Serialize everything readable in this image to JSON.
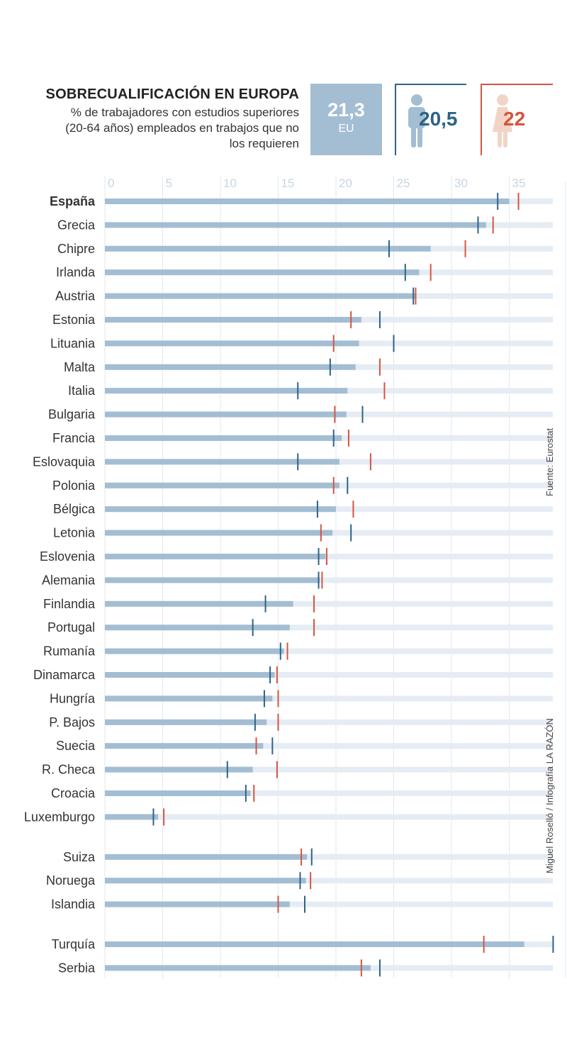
{
  "header": {
    "title": "SOBRECUALIFICACIÓN EN EUROPA",
    "subtitle": "% de trabajadores con estudios superiores (20-64 años) empleados en trabajos que no los requieren",
    "eu_value": "21,3",
    "eu_label": "EU",
    "men_value": "20,5",
    "women_value": "22",
    "men_icon": "man-icon",
    "women_icon": "woman-icon"
  },
  "credits": {
    "source": "Fuente: Eurostat",
    "author": "Miguel Roselló / Infografía LA RAZÓN"
  },
  "colors": {
    "total_bar": "#a3bdd3",
    "track": "#e6ecf3",
    "men": "#2c6387",
    "women": "#d4553f",
    "tick_label": "#c5d6e5"
  },
  "chart_data": {
    "type": "bar",
    "orientation": "horizontal",
    "x_ticks": [
      0,
      5,
      10,
      15,
      20,
      25,
      30,
      35
    ],
    "xlim": [
      0,
      39
    ],
    "legend": {
      "total": "21,3",
      "men": "20,5",
      "women": "22"
    },
    "series_names": [
      "total",
      "men",
      "women"
    ],
    "rows": [
      {
        "country": "España",
        "total": 35.0,
        "men": 34.0,
        "women": 35.8,
        "bold": true
      },
      {
        "country": "Grecia",
        "total": 33.0,
        "men": 32.3,
        "women": 33.6
      },
      {
        "country": "Chipre",
        "total": 28.2,
        "men": 24.6,
        "women": 31.2
      },
      {
        "country": "Irlanda",
        "total": 27.2,
        "men": 26.0,
        "women": 28.2
      },
      {
        "country": "Austria",
        "total": 26.9,
        "men": 26.7,
        "women": 26.9
      },
      {
        "country": "Estonia",
        "total": 22.2,
        "men": 23.8,
        "women": 21.3
      },
      {
        "country": "Lituania",
        "total": 22.0,
        "men": 25.0,
        "women": 19.8
      },
      {
        "country": "Malta",
        "total": 21.7,
        "men": 19.5,
        "women": 23.8
      },
      {
        "country": "Italia",
        "total": 21.0,
        "men": 16.7,
        "women": 24.2
      },
      {
        "country": "Bulgaria",
        "total": 20.9,
        "men": 22.3,
        "women": 19.9
      },
      {
        "country": "Francia",
        "total": 20.5,
        "men": 19.8,
        "women": 21.1
      },
      {
        "country": "Eslovaquia",
        "total": 20.3,
        "men": 16.7,
        "women": 23.0
      },
      {
        "country": "Polonia",
        "total": 20.3,
        "men": 21.0,
        "women": 19.8
      },
      {
        "country": "Bélgica",
        "total": 20.0,
        "men": 18.4,
        "women": 21.5
      },
      {
        "country": "Letonia",
        "total": 19.7,
        "men": 21.3,
        "women": 18.7
      },
      {
        "country": "Eslovenia",
        "total": 19.1,
        "men": 18.5,
        "women": 19.2
      },
      {
        "country": "Alemania",
        "total": 18.6,
        "men": 18.5,
        "women": 18.8
      },
      {
        "country": "Finlandia",
        "total": 16.3,
        "men": 13.9,
        "women": 18.1
      },
      {
        "country": "Portugal",
        "total": 16.0,
        "men": 12.8,
        "women": 18.1
      },
      {
        "country": "Rumanía",
        "total": 15.5,
        "men": 15.2,
        "women": 15.8
      },
      {
        "country": "Dinamarca",
        "total": 14.7,
        "men": 14.3,
        "women": 14.9
      },
      {
        "country": "Hungría",
        "total": 14.5,
        "men": 13.8,
        "women": 15.0
      },
      {
        "country": "P. Bajos",
        "total": 14.0,
        "men": 13.0,
        "women": 15.0
      },
      {
        "country": "Suecia",
        "total": 13.7,
        "men": 14.5,
        "women": 13.1
      },
      {
        "country": "R. Checa",
        "total": 12.8,
        "men": 10.6,
        "women": 14.9
      },
      {
        "country": "Croacia",
        "total": 12.6,
        "men": 12.2,
        "women": 12.9
      },
      {
        "country": "Luxemburgo",
        "total": 4.6,
        "men": 4.2,
        "women": 5.1
      },
      {
        "country": "Suiza",
        "total": 17.5,
        "men": 17.9,
        "women": 17.0,
        "gap_before": true
      },
      {
        "country": "Noruega",
        "total": 17.4,
        "men": 16.9,
        "women": 17.8
      },
      {
        "country": "Islandia",
        "total": 16.0,
        "men": 17.3,
        "women": 15.0
      },
      {
        "country": "Turquía",
        "total": 36.3,
        "men": 38.8,
        "women": 32.8,
        "gap_before": true
      },
      {
        "country": "Serbia",
        "total": 23.0,
        "men": 23.8,
        "women": 22.2
      }
    ]
  }
}
